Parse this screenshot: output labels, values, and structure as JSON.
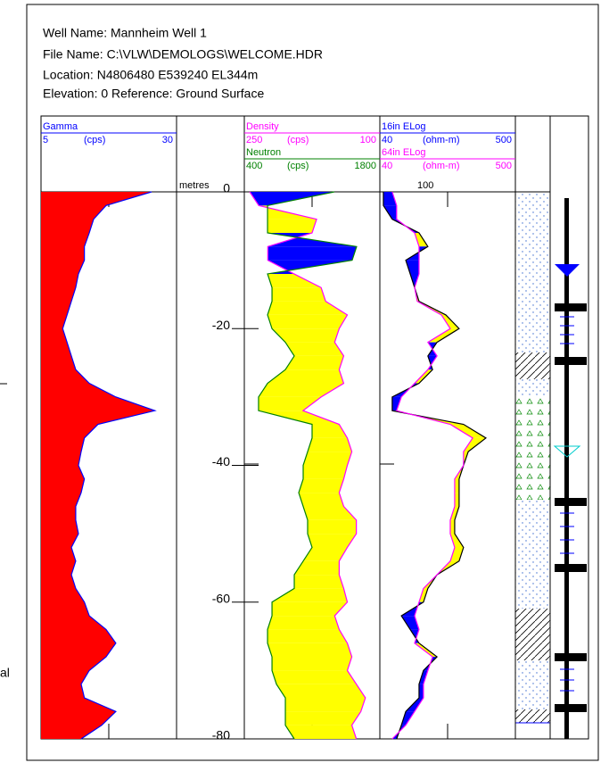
{
  "header": {
    "lines": [
      "Well Name: Mannheim Well 1",
      "File Name: C:\\VLW\\DEMOLOGS\\WELCOME.HDR",
      "Location: N4806480 E539240 EL344m",
      "Elevation:  0  Reference: Ground Surface"
    ]
  },
  "background_fragment": "al",
  "depth": {
    "label": "metres",
    "ticks": [
      0,
      -20,
      -40,
      -60,
      -80
    ],
    "samples": [
      0,
      -2,
      -4,
      -6,
      -8,
      -10,
      -12,
      -14,
      -16,
      -18,
      -20,
      -22,
      -24,
      -26,
      -28,
      -30,
      -32,
      -34,
      -36,
      -38,
      -40,
      -42,
      -44,
      -46,
      -48,
      -50,
      -52,
      -54,
      -56,
      -58,
      -60,
      -62,
      -64,
      -66,
      -68,
      -70,
      -72,
      -74,
      -76,
      -78,
      -80
    ]
  },
  "tracks": [
    {
      "fill_color": "#ff0000",
      "curves": [
        {
          "name": "Gamma",
          "unit": "(cps)",
          "scale": [
            5,
            30
          ],
          "color": "#0000ff",
          "values": [
            25.4,
            17,
            14.7,
            13.9,
            13,
            13,
            11.9,
            11.4,
            10.6,
            9.8,
            9,
            9.8,
            10.6,
            11.4,
            13.9,
            18.8,
            26,
            15.5,
            13,
            12.4,
            11.9,
            13,
            12.4,
            11.4,
            11.4,
            11.9,
            10.6,
            11.4,
            10.6,
            11.4,
            13,
            13.9,
            17,
            18.8,
            17,
            13.9,
            12.4,
            13,
            18.8,
            16.2,
            12.4
          ]
        }
      ]
    },
    {
      "fill_colors": [
        "#ffff00",
        "#0000ff"
      ],
      "curves": [
        {
          "name": "Density",
          "unit": "(cps)",
          "scale": [
            250,
            100
          ],
          "color": "#ff00ff",
          "values": [
            244,
            234,
            170,
            175,
            224,
            224,
            195,
            165,
            160,
            136,
            145,
            150,
            140,
            145,
            140,
            165,
            185,
            145,
            136,
            131,
            136,
            140,
            145,
            140,
            126,
            126,
            136,
            145,
            145,
            140,
            136,
            150,
            145,
            136,
            131,
            136,
            126,
            116,
            121,
            131,
            126
          ]
        },
        {
          "name": "Neutron",
          "unit": "(cps)",
          "scale": [
            400,
            1800
          ],
          "color": "#008000",
          "values": [
            1330,
            640,
            640,
            640,
            1560,
            1514,
            640,
            686,
            686,
            640,
            686,
            824,
            916,
            824,
            640,
            547,
            547,
            1100,
            1100,
            1054,
            1008,
            1008,
            962,
            1008,
            1054,
            1054,
            1100,
            1008,
            916,
            916,
            686,
            686,
            640,
            640,
            686,
            686,
            732,
            824,
            824,
            824,
            916
          ]
        }
      ]
    },
    {
      "fill_colors": [
        "#ffff00",
        "#0000ff"
      ],
      "grid_label": 100,
      "curves": [
        {
          "name": "16in ELog",
          "unit": "(ohm-m)",
          "scale": [
            40,
            500
          ],
          "label_color": "#0000ff",
          "color": "#000000",
          "values": [
            52,
            52,
            82,
            173,
            203,
            128,
            143,
            158,
            173,
            264,
            309,
            234,
            203,
            219,
            173,
            82,
            82,
            324,
            400,
            340,
            324,
            309,
            309,
            309,
            294,
            294,
            324,
            309,
            234,
            203,
            188,
            113,
            143,
            173,
            234,
            188,
            173,
            173,
            128,
            113,
            97
          ]
        },
        {
          "name": "64in ELog",
          "unit": "(ohm-m)",
          "scale": [
            40,
            500
          ],
          "color": "#ff00ff",
          "values": [
            82,
            97,
            97,
            158,
            173,
            173,
            173,
            158,
            167,
            249,
            279,
            203,
            234,
            203,
            158,
            113,
            97,
            279,
            355,
            324,
            324,
            294,
            294,
            294,
            279,
            279,
            294,
            279,
            234,
            188,
            173,
            158,
            173,
            158,
            219,
            203,
            188,
            188,
            158,
            128,
            82
          ]
        }
      ]
    }
  ]
}
